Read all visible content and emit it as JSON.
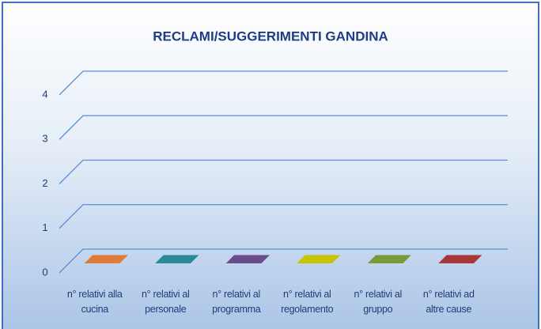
{
  "chart_data": {
    "type": "bar3d",
    "title": "RECLAMI/SUGGERIMENTI  GANDINA",
    "categories": [
      "n° relativi alla cucina",
      "n° relativi al personale",
      "n° relativi al programma",
      "n° relativi al regolamento",
      "n° relativi al gruppo",
      "n° relativi ad altre cause"
    ],
    "values": [
      0,
      0,
      0,
      0,
      0,
      0
    ],
    "colors": [
      "#e07b39",
      "#2a8a9a",
      "#6a4c8c",
      "#c8c400",
      "#7a9a3a",
      "#a83838"
    ],
    "ylim": [
      0,
      4
    ],
    "yticks": [
      0,
      1,
      2,
      3,
      4
    ],
    "grid": true
  }
}
